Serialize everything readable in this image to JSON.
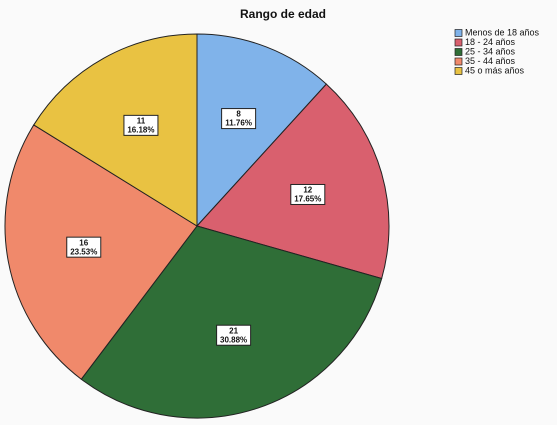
{
  "chart_data": {
    "type": "pie",
    "title": "Rango de edad",
    "categories": [
      "Menos de 18 años",
      "18 - 24 años",
      "25 - 34 años",
      "35 - 44 años",
      "45 o más años"
    ],
    "values": [
      8,
      12,
      21,
      16,
      11
    ],
    "percent_labels": [
      "11.76%",
      "17.65%",
      "30.88%",
      "23.53%",
      "16.18%"
    ],
    "colors": [
      "#80b3ea",
      "#d9606e",
      "#2f6e37",
      "#f0896b",
      "#e9c242"
    ],
    "legend": "top-right"
  }
}
